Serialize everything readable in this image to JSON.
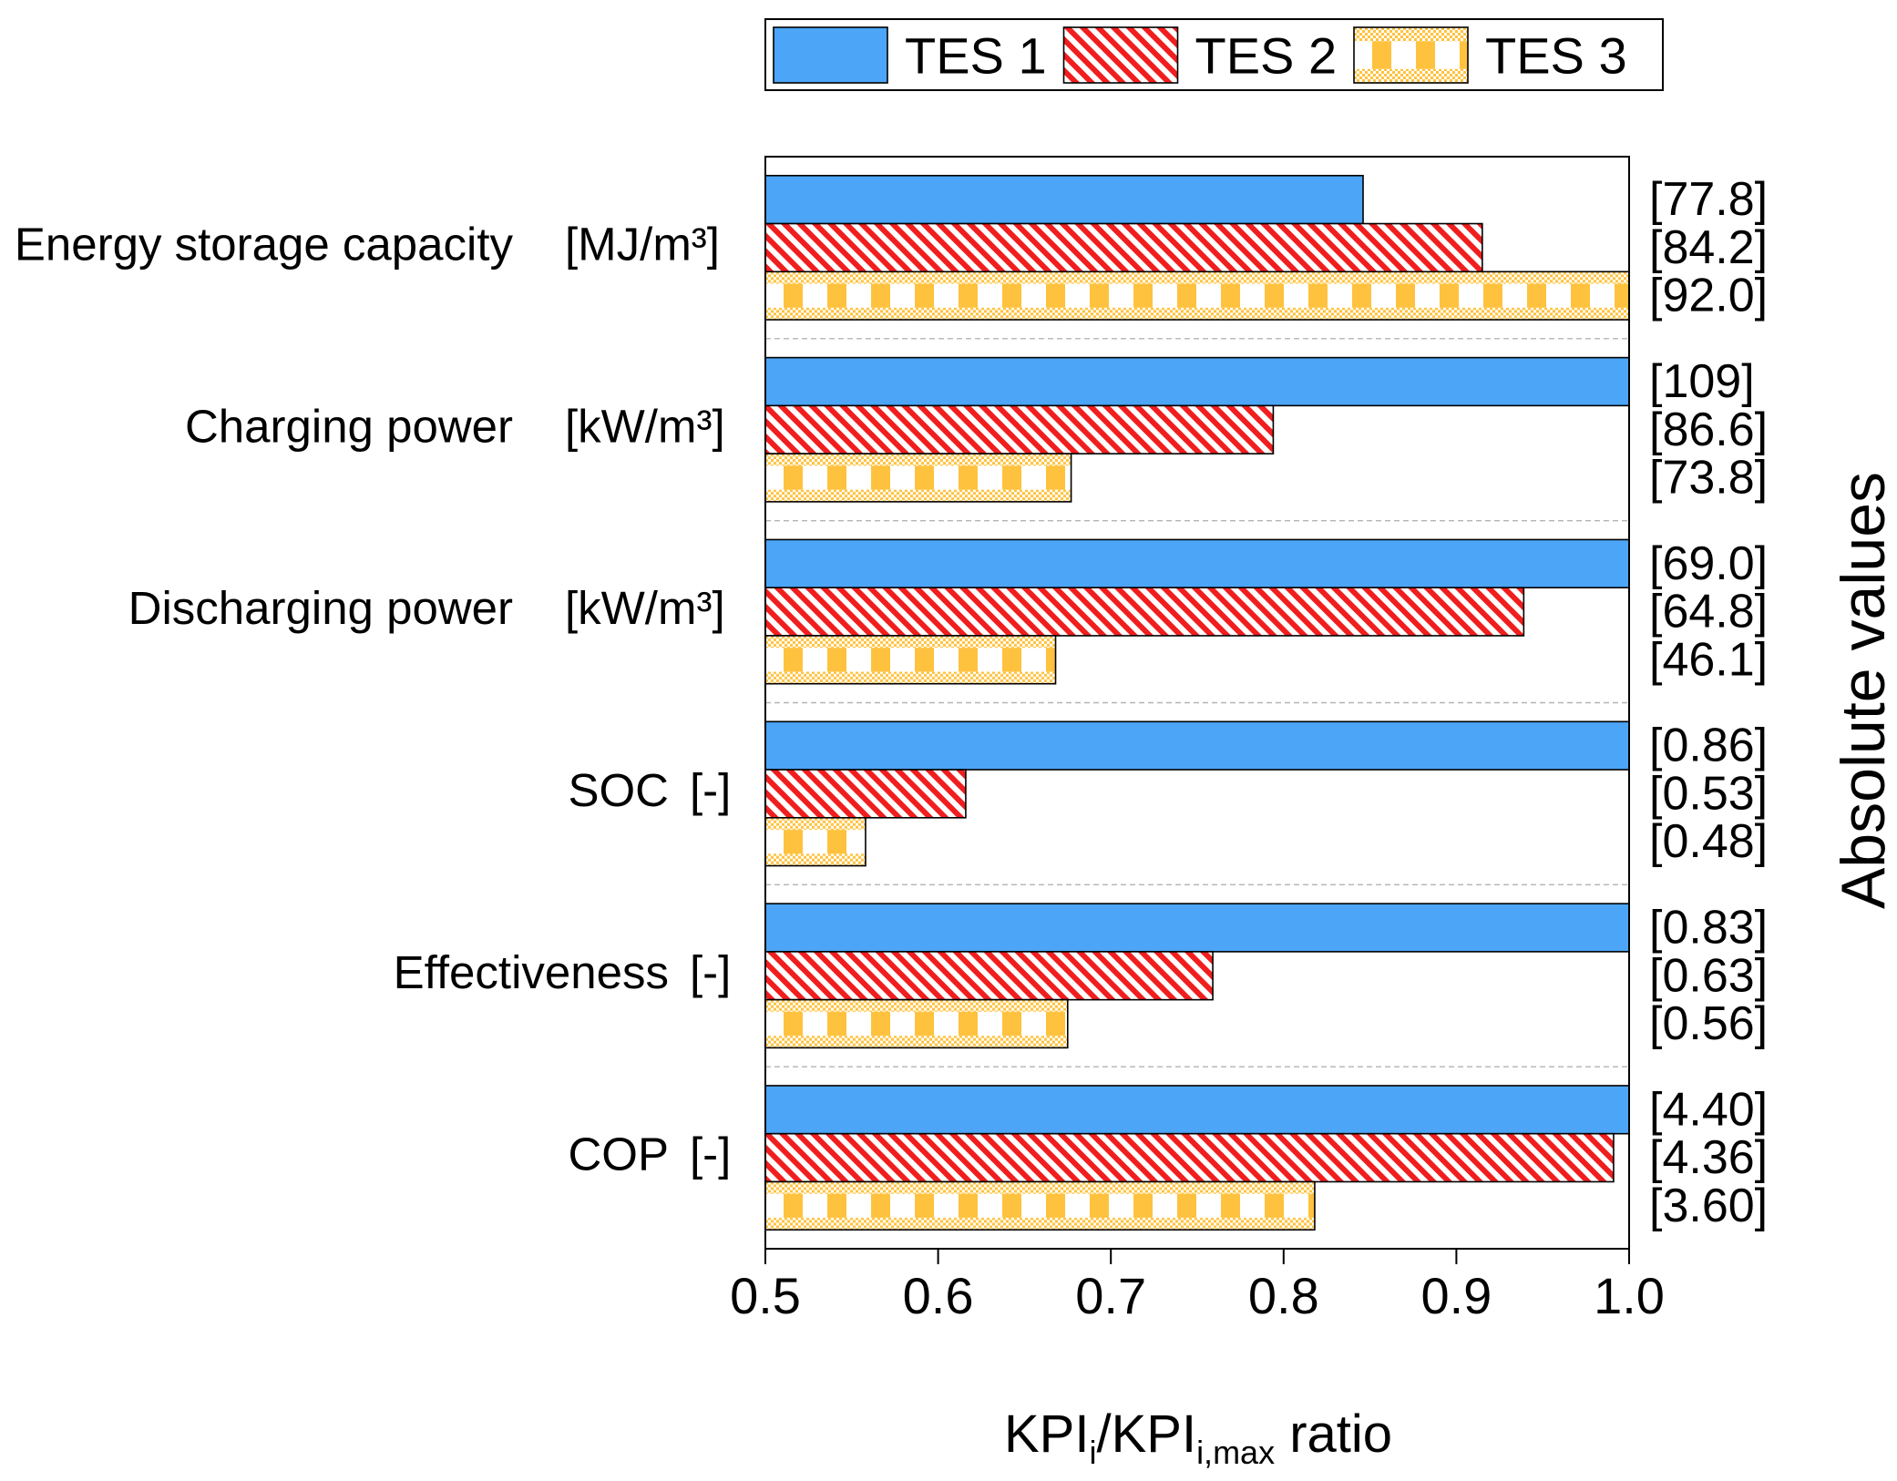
{
  "chart_data": {
    "type": "bar",
    "orientation": "horizontal",
    "categories": [
      "Energy storage capacity",
      "Charging power",
      "Discharging power",
      "SOC",
      "Effectiveness",
      "COP"
    ],
    "units": [
      "[MJ/m³]",
      "[kW/m³]",
      "[kW/m³]",
      "[-]",
      "[-]",
      "[-]"
    ],
    "series": [
      {
        "name": "TES 1",
        "color": "#4ca5f6",
        "pattern": "solid",
        "values": [
          0.846,
          1.0,
          1.0,
          1.0,
          1.0,
          1.0
        ],
        "absolute_labels": [
          "[77.8]",
          "[109]",
          "[69.0]",
          "[0.86]",
          "[0.83]",
          "[4.40]"
        ]
      },
      {
        "name": "TES 2",
        "color": "#f01e1e",
        "pattern": "diagonal-hatch",
        "values": [
          0.915,
          0.794,
          0.939,
          0.616,
          0.759,
          0.991
        ],
        "absolute_labels": [
          "[84.2]",
          "[86.6]",
          "[64.8]",
          "[0.53]",
          "[0.63]",
          "[4.36]"
        ]
      },
      {
        "name": "TES 3",
        "color": "#ffc23e",
        "pattern": "checker",
        "values": [
          1.0,
          0.677,
          0.668,
          0.558,
          0.675,
          0.818
        ],
        "absolute_labels": [
          "[92.0]",
          "[73.8]",
          "[46.1]",
          "[0.48]",
          "[0.56]",
          "[3.60]"
        ]
      }
    ],
    "xlim": [
      0.5,
      1.0
    ],
    "xticks": [
      0.5,
      0.6,
      0.7,
      0.8,
      0.9,
      1.0
    ],
    "xtick_labels": [
      "0.5",
      "0.6",
      "0.7",
      "0.8",
      "0.9",
      "1.0"
    ],
    "xlabel_parts": [
      {
        "text": "KPI",
        "sub": false
      },
      {
        "text": "i",
        "sub": true
      },
      {
        "text": "/KPI",
        "sub": false
      },
      {
        "text": "i,max",
        "sub": true
      },
      {
        "text": " ratio",
        "sub": false
      }
    ],
    "right_axis_label": "Absolute values",
    "legend_position": "top",
    "grid": false
  }
}
